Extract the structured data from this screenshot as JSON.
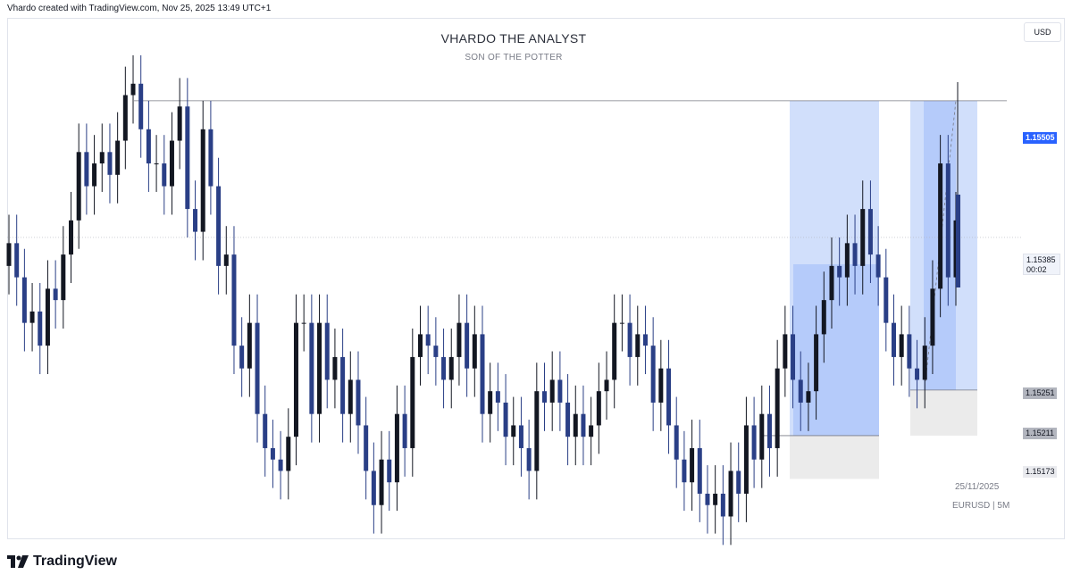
{
  "header": {
    "attribution": "Vhardo created with TradingView.com, Nov 25, 2025 13:49 UTC+1"
  },
  "chart_title": "VHARDO THE ANALYST",
  "chart_subtitle": "SON OF THE POTTER",
  "currency_button": "USD",
  "footer": {
    "brand": "TradingView",
    "logo_icon": "tradingview-logo-icon"
  },
  "colors": {
    "candle_up": "#131722",
    "candle_down": "#2a3f86",
    "zone_blue_light": "#d1dffb",
    "zone_blue_mid": "#aec6fa",
    "zone_grey": "#ebebeb",
    "accent": "#2962ff"
  },
  "chart_data": {
    "type": "candlestick",
    "symbol_label": "EURUSD | 5M",
    "date_label": "25/11/2025",
    "y_range": [
      1.1512,
      1.1557
    ],
    "price_labels": {
      "high_line": "1.15505",
      "last_price": "1.15385",
      "countdown": "00:02",
      "level_1": "1.15251",
      "level_2": "1.15211",
      "level_3": "1.15173"
    },
    "levels": [
      1.15505,
      1.15385,
      1.15251,
      1.15211,
      1.15173
    ],
    "series": [
      {
        "values": [
          1.1538,
          1.1535,
          1.1531,
          1.1532,
          1.1529,
          1.1534,
          1.1533,
          1.1537,
          1.154,
          1.1546,
          1.1543,
          1.1545,
          1.1546,
          1.1544,
          1.1547,
          1.1551,
          1.1552,
          1.1548,
          1.1545,
          1.1545,
          1.1543,
          1.1547,
          1.155,
          1.1541,
          1.1539,
          1.1548,
          1.1543,
          1.1536,
          1.1537,
          1.1529,
          1.1527,
          1.1531,
          1.1523,
          1.152,
          1.1519,
          1.1518,
          1.1521,
          1.1531,
          1.1531,
          1.1523,
          1.1531,
          1.1526,
          1.1528,
          1.1523,
          1.1526,
          1.1522,
          1.1518,
          1.1515,
          1.1519,
          1.1517,
          1.1523,
          1.152,
          1.1528,
          1.153,
          1.1529,
          1.1528,
          1.1526,
          1.1528,
          1.1531,
          1.1527,
          1.153,
          1.1523,
          1.1525,
          1.1524,
          1.1521,
          1.1522,
          1.152,
          1.1518,
          1.1525,
          1.1524,
          1.1526,
          1.1524,
          1.1521,
          1.1523,
          1.1521,
          1.1522,
          1.1525,
          1.1526,
          1.1531,
          1.1531,
          1.1528,
          1.153,
          1.1529,
          1.1524,
          1.1527,
          1.1522,
          1.1519,
          1.1517,
          1.152,
          1.1516,
          1.1515,
          1.1516,
          1.1514,
          1.1518,
          1.1516,
          1.1522,
          1.1519,
          1.1523,
          1.152,
          1.1527,
          1.153,
          1.1526,
          1.1524,
          1.1525,
          1.153,
          1.1533,
          1.1536,
          1.1535,
          1.1538,
          1.1536,
          1.1541,
          1.1537,
          1.1535,
          1.1531,
          1.1528,
          1.153,
          1.1527,
          1.1526,
          1.1529,
          1.1534,
          1.1545,
          1.1535,
          1.154
        ]
      }
    ]
  }
}
